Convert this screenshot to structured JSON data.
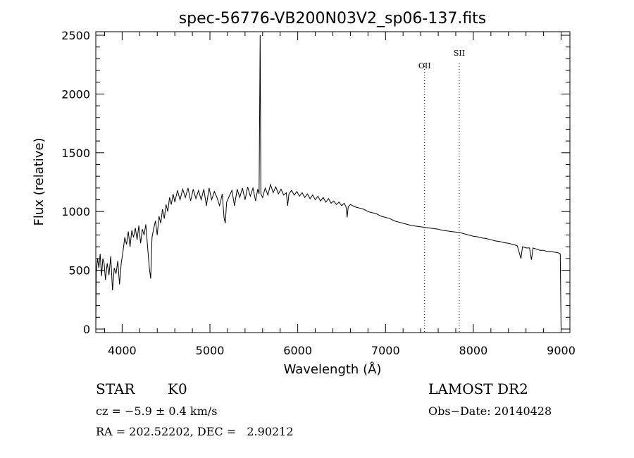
{
  "chart_data": {
    "type": "line",
    "title": "spec-56776-VB200N03V2_sp06-137.fits",
    "xlabel": "Wavelength (Å)",
    "ylabel": "Flux (relative)",
    "xlim": [
      3700,
      9100
    ],
    "ylim": [
      -30,
      2530
    ],
    "xticks": [
      4000,
      5000,
      6000,
      7000,
      8000,
      9000
    ],
    "yticks": [
      0,
      500,
      1000,
      1500,
      2000,
      2500
    ],
    "grid": false,
    "line_color": "#000000",
    "spectrum": {
      "name": "",
      "points": [
        [
          3700,
          0
        ],
        [
          3705,
          480
        ],
        [
          3720,
          600
        ],
        [
          3735,
          520
        ],
        [
          3750,
          640
        ],
        [
          3765,
          450
        ],
        [
          3780,
          600
        ],
        [
          3795,
          560
        ],
        [
          3810,
          420
        ],
        [
          3830,
          560
        ],
        [
          3850,
          460
        ],
        [
          3870,
          620
        ],
        [
          3890,
          330
        ],
        [
          3910,
          520
        ],
        [
          3930,
          470
        ],
        [
          3950,
          580
        ],
        [
          3970,
          380
        ],
        [
          3990,
          560
        ],
        [
          4010,
          660
        ],
        [
          4030,
          780
        ],
        [
          4050,
          720
        ],
        [
          4070,
          830
        ],
        [
          4090,
          700
        ],
        [
          4110,
          840
        ],
        [
          4130,
          780
        ],
        [
          4150,
          860
        ],
        [
          4170,
          760
        ],
        [
          4190,
          880
        ],
        [
          4210,
          730
        ],
        [
          4230,
          850
        ],
        [
          4250,
          800
        ],
        [
          4270,
          890
        ],
        [
          4290,
          700
        ],
        [
          4310,
          520
        ],
        [
          4325,
          430
        ],
        [
          4340,
          780
        ],
        [
          4360,
          860
        ],
        [
          4380,
          920
        ],
        [
          4400,
          800
        ],
        [
          4420,
          960
        ],
        [
          4440,
          900
        ],
        [
          4460,
          1020
        ],
        [
          4480,
          940
        ],
        [
          4500,
          1060
        ],
        [
          4520,
          1000
        ],
        [
          4540,
          1120
        ],
        [
          4560,
          1060
        ],
        [
          4580,
          1150
        ],
        [
          4600,
          1080
        ],
        [
          4630,
          1180
        ],
        [
          4660,
          1100
        ],
        [
          4690,
          1190
        ],
        [
          4720,
          1120
        ],
        [
          4750,
          1200
        ],
        [
          4780,
          1090
        ],
        [
          4810,
          1190
        ],
        [
          4840,
          1110
        ],
        [
          4870,
          1180
        ],
        [
          4900,
          1100
        ],
        [
          4930,
          1190
        ],
        [
          4960,
          1050
        ],
        [
          4990,
          1200
        ],
        [
          5020,
          1100
        ],
        [
          5050,
          1170
        ],
        [
          5080,
          1120
        ],
        [
          5110,
          1050
        ],
        [
          5140,
          1150
        ],
        [
          5160,
          950
        ],
        [
          5175,
          900
        ],
        [
          5190,
          1080
        ],
        [
          5220,
          1130
        ],
        [
          5250,
          1180
        ],
        [
          5280,
          1050
        ],
        [
          5310,
          1190
        ],
        [
          5340,
          1120
        ],
        [
          5370,
          1200
        ],
        [
          5400,
          1100
        ],
        [
          5430,
          1210
        ],
        [
          5460,
          1130
        ],
        [
          5490,
          1200
        ],
        [
          5520,
          1090
        ],
        [
          5545,
          1190
        ],
        [
          5560,
          1150
        ],
        [
          5572,
          2500
        ],
        [
          5580,
          1150
        ],
        [
          5600,
          1120
        ],
        [
          5630,
          1200
        ],
        [
          5660,
          1140
        ],
        [
          5690,
          1230
        ],
        [
          5720,
          1160
        ],
        [
          5750,
          1210
        ],
        [
          5780,
          1150
        ],
        [
          5810,
          1190
        ],
        [
          5840,
          1140
        ],
        [
          5870,
          1160
        ],
        [
          5885,
          1050
        ],
        [
          5900,
          1150
        ],
        [
          5930,
          1180
        ],
        [
          5960,
          1140
        ],
        [
          5990,
          1170
        ],
        [
          6020,
          1130
        ],
        [
          6050,
          1160
        ],
        [
          6080,
          1120
        ],
        [
          6110,
          1150
        ],
        [
          6140,
          1110
        ],
        [
          6170,
          1140
        ],
        [
          6200,
          1100
        ],
        [
          6230,
          1130
        ],
        [
          6260,
          1090
        ],
        [
          6290,
          1120
        ],
        [
          6320,
          1080
        ],
        [
          6350,
          1110
        ],
        [
          6380,
          1070
        ],
        [
          6410,
          1090
        ],
        [
          6440,
          1060
        ],
        [
          6470,
          1080
        ],
        [
          6500,
          1050
        ],
        [
          6530,
          1070
        ],
        [
          6550,
          1040
        ],
        [
          6563,
          950
        ],
        [
          6575,
          1040
        ],
        [
          6600,
          1060
        ],
        [
          6650,
          1040
        ],
        [
          6700,
          1030
        ],
        [
          6750,
          1020
        ],
        [
          6800,
          1000
        ],
        [
          6850,
          990
        ],
        [
          6900,
          980
        ],
        [
          6950,
          960
        ],
        [
          7000,
          950
        ],
        [
          7050,
          940
        ],
        [
          7100,
          920
        ],
        [
          7150,
          910
        ],
        [
          7200,
          900
        ],
        [
          7250,
          890
        ],
        [
          7300,
          880
        ],
        [
          7350,
          875
        ],
        [
          7400,
          870
        ],
        [
          7450,
          865
        ],
        [
          7500,
          860
        ],
        [
          7550,
          855
        ],
        [
          7600,
          850
        ],
        [
          7650,
          840
        ],
        [
          7700,
          835
        ],
        [
          7750,
          830
        ],
        [
          7800,
          825
        ],
        [
          7850,
          820
        ],
        [
          7900,
          810
        ],
        [
          7950,
          800
        ],
        [
          8000,
          790
        ],
        [
          8050,
          785
        ],
        [
          8100,
          775
        ],
        [
          8150,
          770
        ],
        [
          8200,
          760
        ],
        [
          8250,
          750
        ],
        [
          8300,
          745
        ],
        [
          8350,
          735
        ],
        [
          8400,
          730
        ],
        [
          8450,
          720
        ],
        [
          8500,
          710
        ],
        [
          8542,
          600
        ],
        [
          8560,
          700
        ],
        [
          8600,
          690
        ],
        [
          8640,
          690
        ],
        [
          8662,
          590
        ],
        [
          8680,
          690
        ],
        [
          8720,
          680
        ],
        [
          8760,
          670
        ],
        [
          8800,
          670
        ],
        [
          8840,
          660
        ],
        [
          8880,
          660
        ],
        [
          8920,
          655
        ],
        [
          8960,
          650
        ],
        [
          8990,
          640
        ],
        [
          9000,
          0
        ]
      ]
    },
    "line_marks": [
      {
        "label": "OII",
        "x": 7445
      },
      {
        "label": "SII",
        "x": 7840
      }
    ]
  },
  "info": {
    "object_class": "STAR",
    "subclass": "K0",
    "survey": "LAMOST DR2",
    "redshift_text": "cz = −5.9 ± 0.4 km/s",
    "obs_date": "Obs−Date: 20140428",
    "coords": "RA = 202.52202, DEC =   2.90212"
  }
}
